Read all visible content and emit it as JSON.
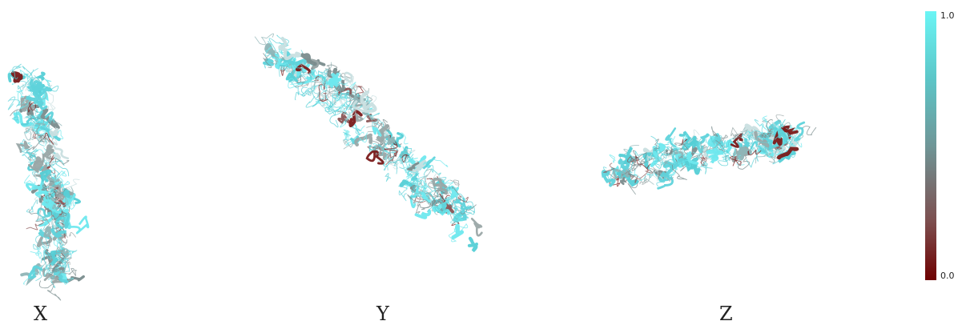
{
  "views": [
    {
      "id": "x",
      "label": "X"
    },
    {
      "id": "y",
      "label": "Y"
    },
    {
      "id": "z",
      "label": "Z"
    }
  ],
  "colorbar": {
    "max_label": "1.0",
    "min_label": "0.0",
    "colors": {
      "high": "#6af5f5",
      "mid": "#6f9697",
      "low": "#6e0000"
    }
  }
}
